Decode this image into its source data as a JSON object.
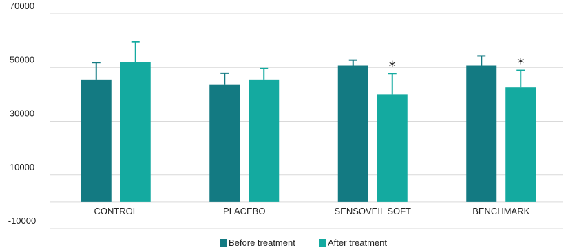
{
  "chart_data": {
    "type": "bar",
    "categories": [
      "CONTROL",
      "PLACEBO",
      "SENSOVEIL SOFT",
      "BENCHMARK"
    ],
    "series": [
      {
        "name": "Before treatment",
        "color": "#137A82",
        "values": [
          45500,
          43500,
          50700,
          50700
        ],
        "error_plus": [
          6300,
          4300,
          2000,
          3600
        ]
      },
      {
        "name": "After treatment",
        "color": "#14AAA0",
        "values": [
          52000,
          45500,
          40000,
          42600
        ],
        "error_plus": [
          7600,
          4100,
          7700,
          6300
        ],
        "significance": [
          "",
          "",
          "*",
          "*"
        ]
      }
    ],
    "y_ticks": [
      "70000",
      "50000",
      "30000",
      "10000",
      "-10000"
    ],
    "y_tick_values": [
      70000,
      50000,
      30000,
      10000,
      -10000
    ],
    "ylim": [
      -10000,
      70000
    ],
    "grid": true,
    "legend_position": "bottom",
    "title": "",
    "xlabel": "",
    "ylabel": ""
  }
}
